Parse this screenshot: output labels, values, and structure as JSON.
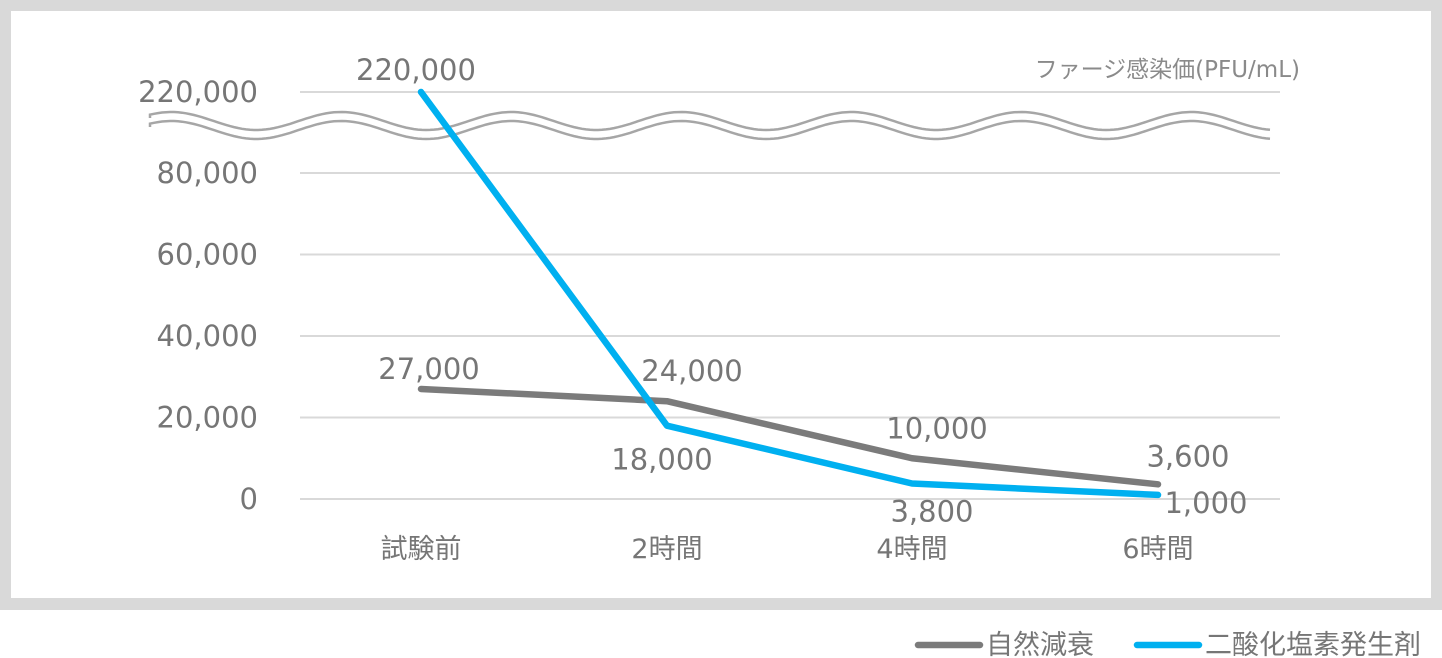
{
  "chart_data": {
    "type": "line",
    "unit_label": "ファージ感染価(PFU/mL)",
    "categories": [
      "試験前",
      "2時間",
      "4時間",
      "6時間"
    ],
    "y_ticks": [
      0,
      20000,
      40000,
      60000,
      80000,
      220000
    ],
    "y_tick_labels": [
      "0",
      "20,000",
      "40,000",
      "60,000",
      "80,000",
      "220,000"
    ],
    "axis_break": true,
    "grid": true,
    "legend_position": "bottom-right",
    "series": [
      {
        "name": "自然減衰",
        "color": "#7b7b7b",
        "values": [
          27000,
          24000,
          10000,
          3600
        ],
        "labels": [
          "27,000",
          "24,000",
          "10,000",
          "3,600"
        ]
      },
      {
        "name": "二酸化塩素発生剤",
        "color": "#00b0f0",
        "values": [
          220000,
          18000,
          3800,
          1000
        ],
        "labels": [
          "220,000",
          "18,000",
          "3,800",
          "1,000"
        ]
      }
    ]
  }
}
